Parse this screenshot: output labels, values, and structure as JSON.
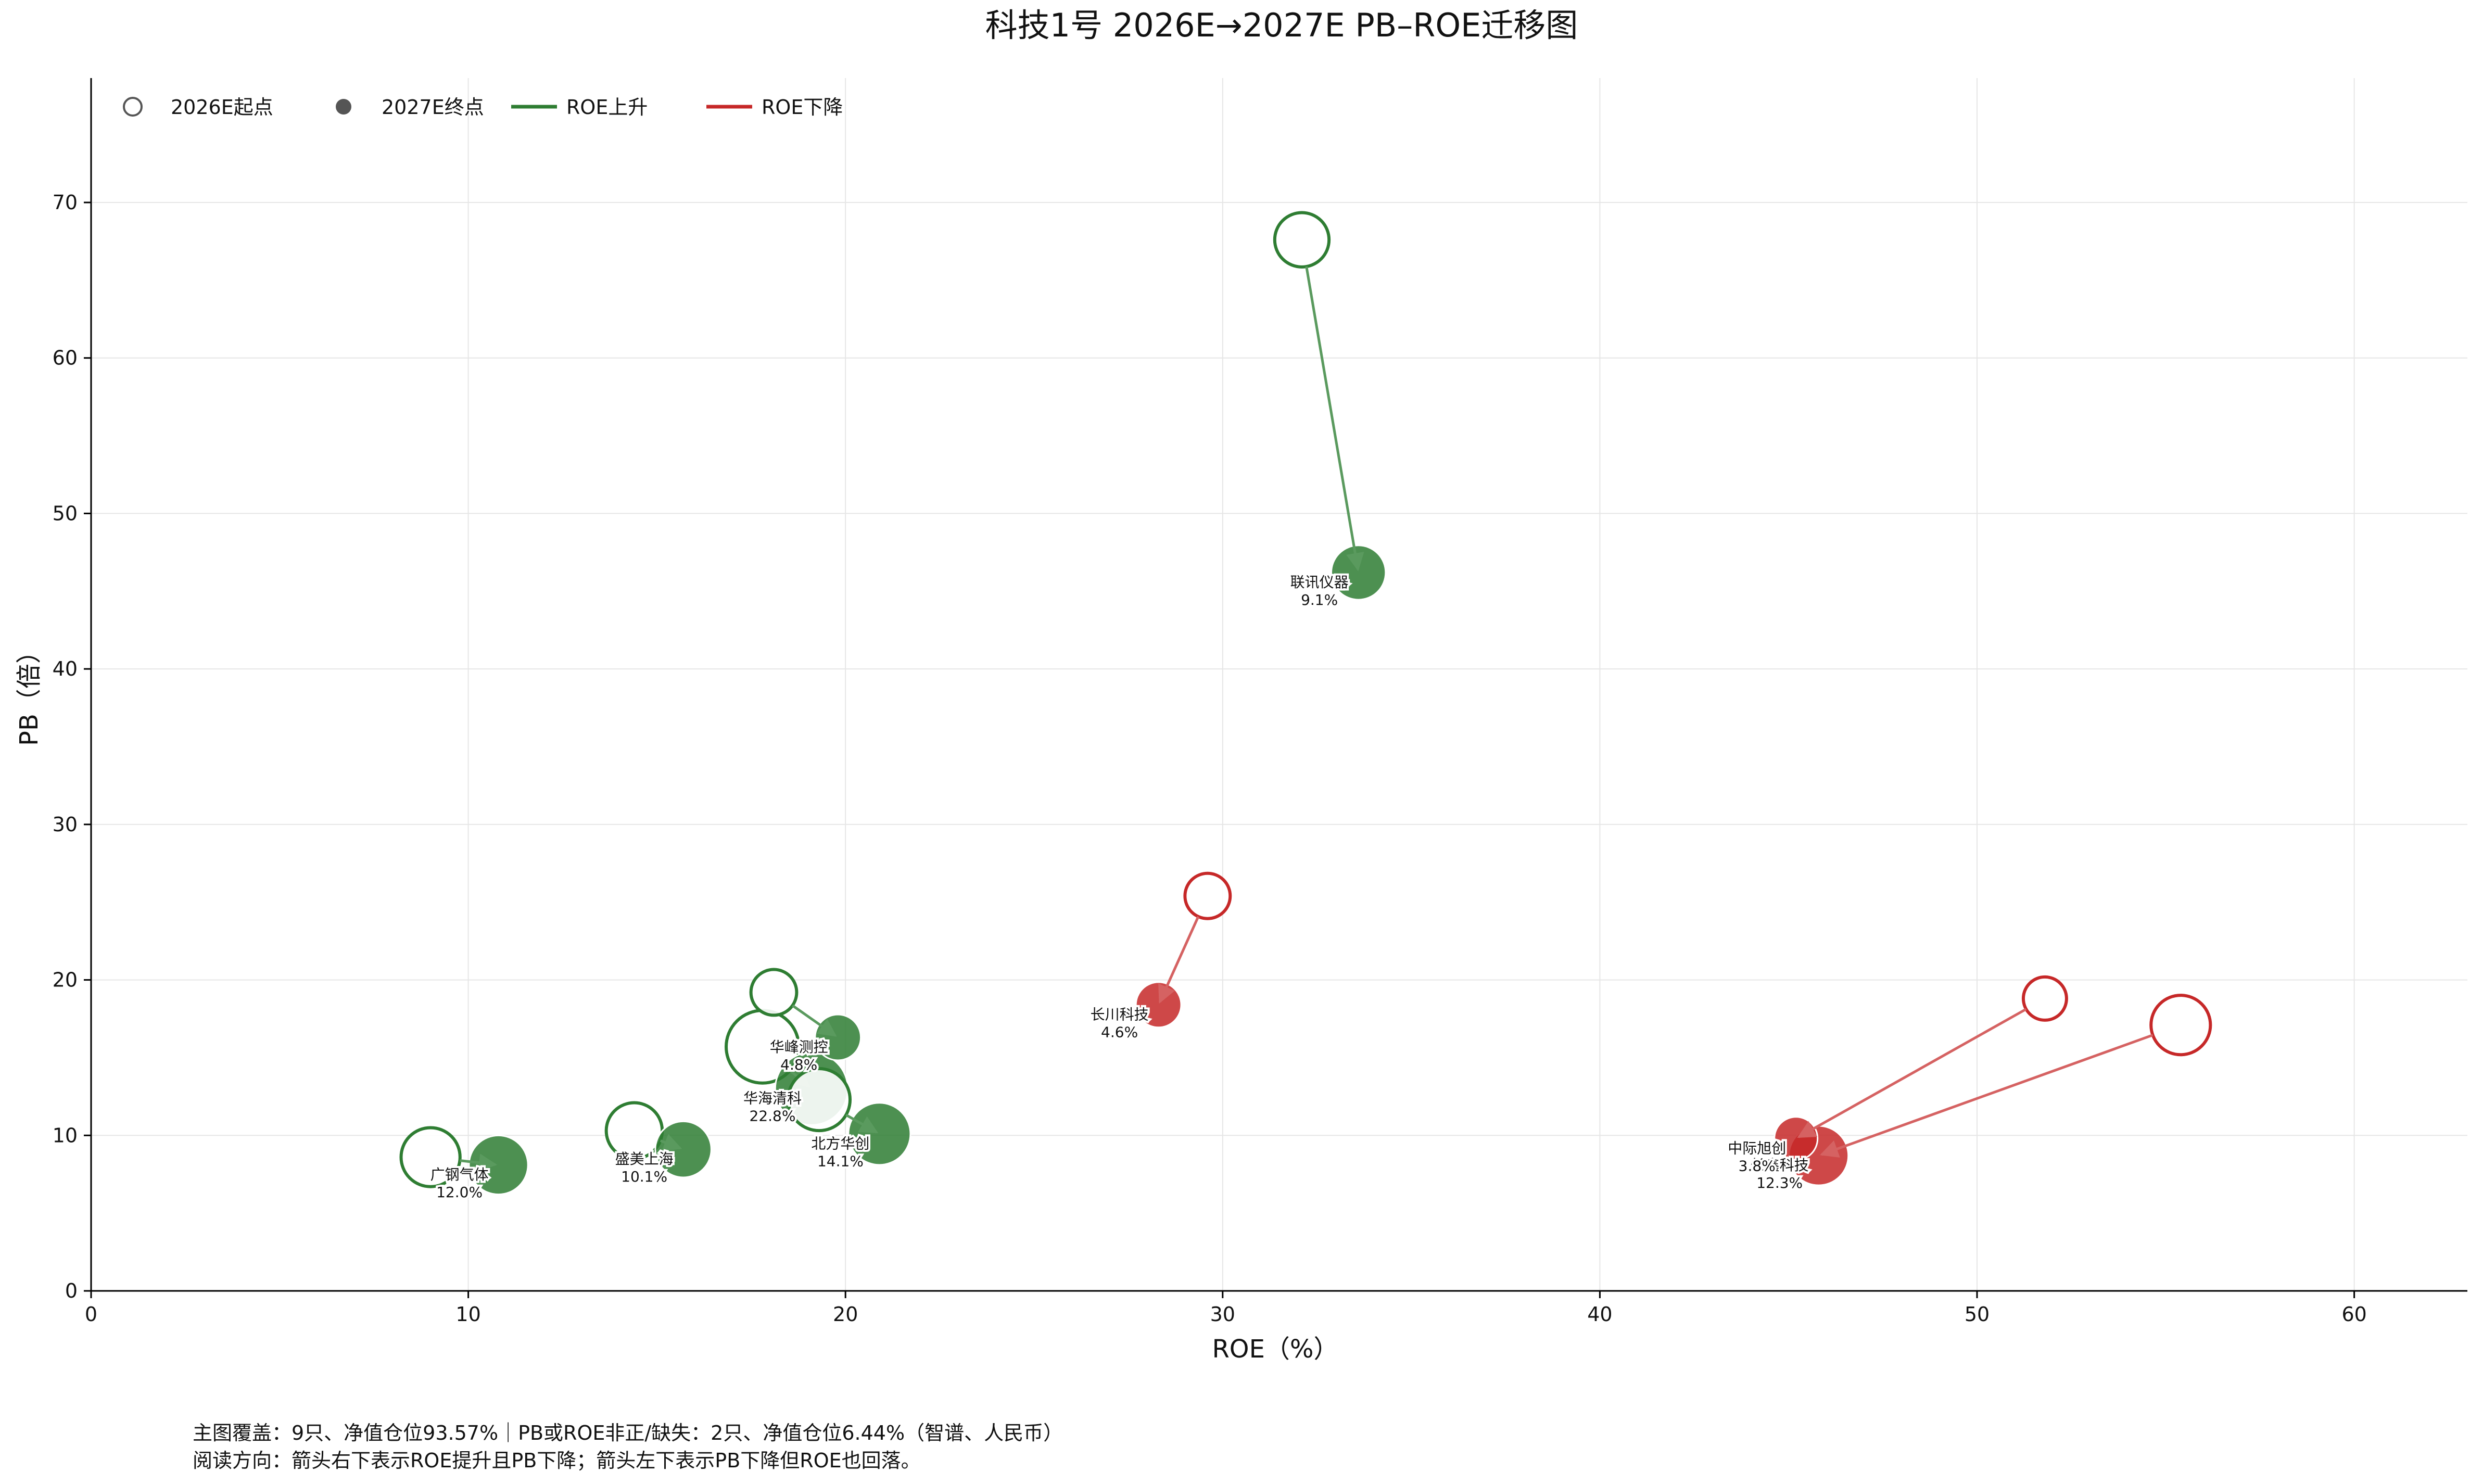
{
  "chart_data": {
    "type": "scatter",
    "title": "科技1号 2026E→2027E PB–ROE迁移图",
    "xlabel": "ROE（%）",
    "ylabel": "PB（倍）",
    "xlim": [
      0,
      63
    ],
    "ylim": [
      0,
      78
    ],
    "xticks": [
      0,
      10,
      20,
      30,
      40,
      50,
      60
    ],
    "yticks": [
      0,
      10,
      20,
      30,
      40,
      50,
      60,
      70
    ],
    "grid": true,
    "legend_position": "top-left",
    "legend": [
      {
        "kind": "hollow",
        "label": "2026E起点"
      },
      {
        "kind": "solid",
        "label": "2027E终点"
      },
      {
        "kind": "line-up",
        "label": "ROE上升"
      },
      {
        "kind": "line-down",
        "label": "ROE下降"
      }
    ],
    "colors": {
      "up": "#2e7d32",
      "down": "#c62828",
      "grid": "#e6e6e6",
      "axis": "#000000"
    },
    "stocks": [
      {
        "name": "联讯仪器",
        "weight": "9.1%",
        "direction": "up",
        "start": [
          32.1,
          67.6
        ],
        "end": [
          33.6,
          46.2
        ],
        "size": 9.1
      },
      {
        "name": "华峰测控",
        "weight": "4.8%",
        "direction": "up",
        "start": [
          18.1,
          19.2
        ],
        "end": [
          19.8,
          16.3
        ],
        "size": 4.8
      },
      {
        "name": "华海清科",
        "weight": "22.8%",
        "direction": "up",
        "start": [
          17.8,
          15.7
        ],
        "end": [
          19.1,
          13.0
        ],
        "size": 22.8
      },
      {
        "name": "北方华创",
        "weight": "14.1%",
        "direction": "up",
        "start": [
          19.3,
          12.3
        ],
        "end": [
          20.9,
          10.1
        ],
        "size": 14.1
      },
      {
        "name": "盛美上海",
        "weight": "10.1%",
        "direction": "up",
        "start": [
          14.4,
          10.3
        ],
        "end": [
          15.7,
          9.1
        ],
        "size": 10.1
      },
      {
        "name": "广钢气体",
        "weight": "12.0%",
        "direction": "up",
        "start": [
          9.0,
          8.6
        ],
        "end": [
          10.8,
          8.1
        ],
        "size": 12.0
      },
      {
        "name": "长川科技",
        "weight": "4.6%",
        "direction": "down",
        "start": [
          29.6,
          25.4
        ],
        "end": [
          28.3,
          18.4
        ],
        "size": 4.6
      },
      {
        "name": "中际旭创",
        "weight": "3.8%",
        "direction": "down",
        "start": [
          51.8,
          18.8
        ],
        "end": [
          45.2,
          9.8
        ],
        "size": 3.8
      },
      {
        "name": "长鑫科技",
        "weight": "12.3%",
        "direction": "down",
        "start": [
          55.4,
          17.1
        ],
        "end": [
          45.8,
          8.7
        ],
        "size": 12.3
      }
    ]
  },
  "footnotes": {
    "line1": "主图覆盖：9只、净值仓位93.57%｜PB或ROE非正/缺失：2只、净值仓位6.44%（智谱、人民币）",
    "line2": "阅读方向：箭头右下表示ROE提升且PB下降；箭头左下表示PB下降但ROE也回落。"
  }
}
